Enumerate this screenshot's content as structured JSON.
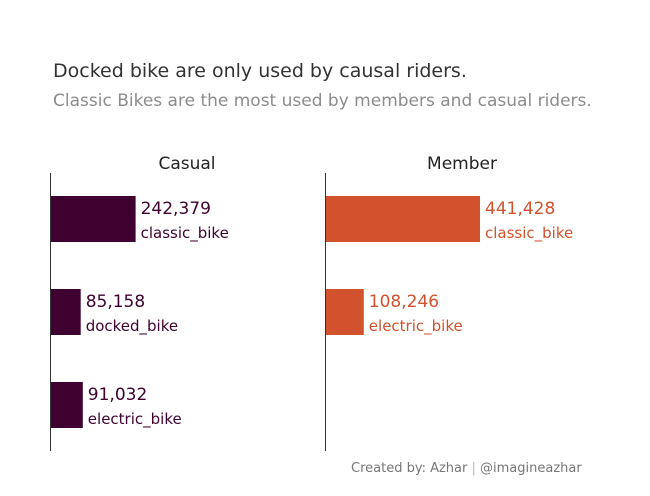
{
  "title": "Docked bike are only used by causal riders.",
  "subtitle": "Classic Bikes are the most used by members and casual riders.",
  "credit": {
    "author": "Created by: Azhar",
    "separator": "|",
    "handle": "@imagineazhar"
  },
  "chart_data": [
    {
      "type": "bar",
      "orientation": "horizontal",
      "panel": "Casual",
      "categories": [
        "classic_bike",
        "docked_bike",
        "electric_bike"
      ],
      "values": [
        242379,
        85158,
        91032
      ],
      "labels": [
        "242,379",
        "85,158",
        "91,032"
      ],
      "color": "#3f0230",
      "xlim": [
        0,
        441428
      ]
    },
    {
      "type": "bar",
      "orientation": "horizontal",
      "panel": "Member",
      "categories": [
        "classic_bike",
        "electric_bike"
      ],
      "values": [
        441428,
        108246
      ],
      "labels": [
        "441,428",
        "108,246"
      ],
      "color": "#d1522d",
      "xlim": [
        0,
        441428
      ]
    }
  ]
}
